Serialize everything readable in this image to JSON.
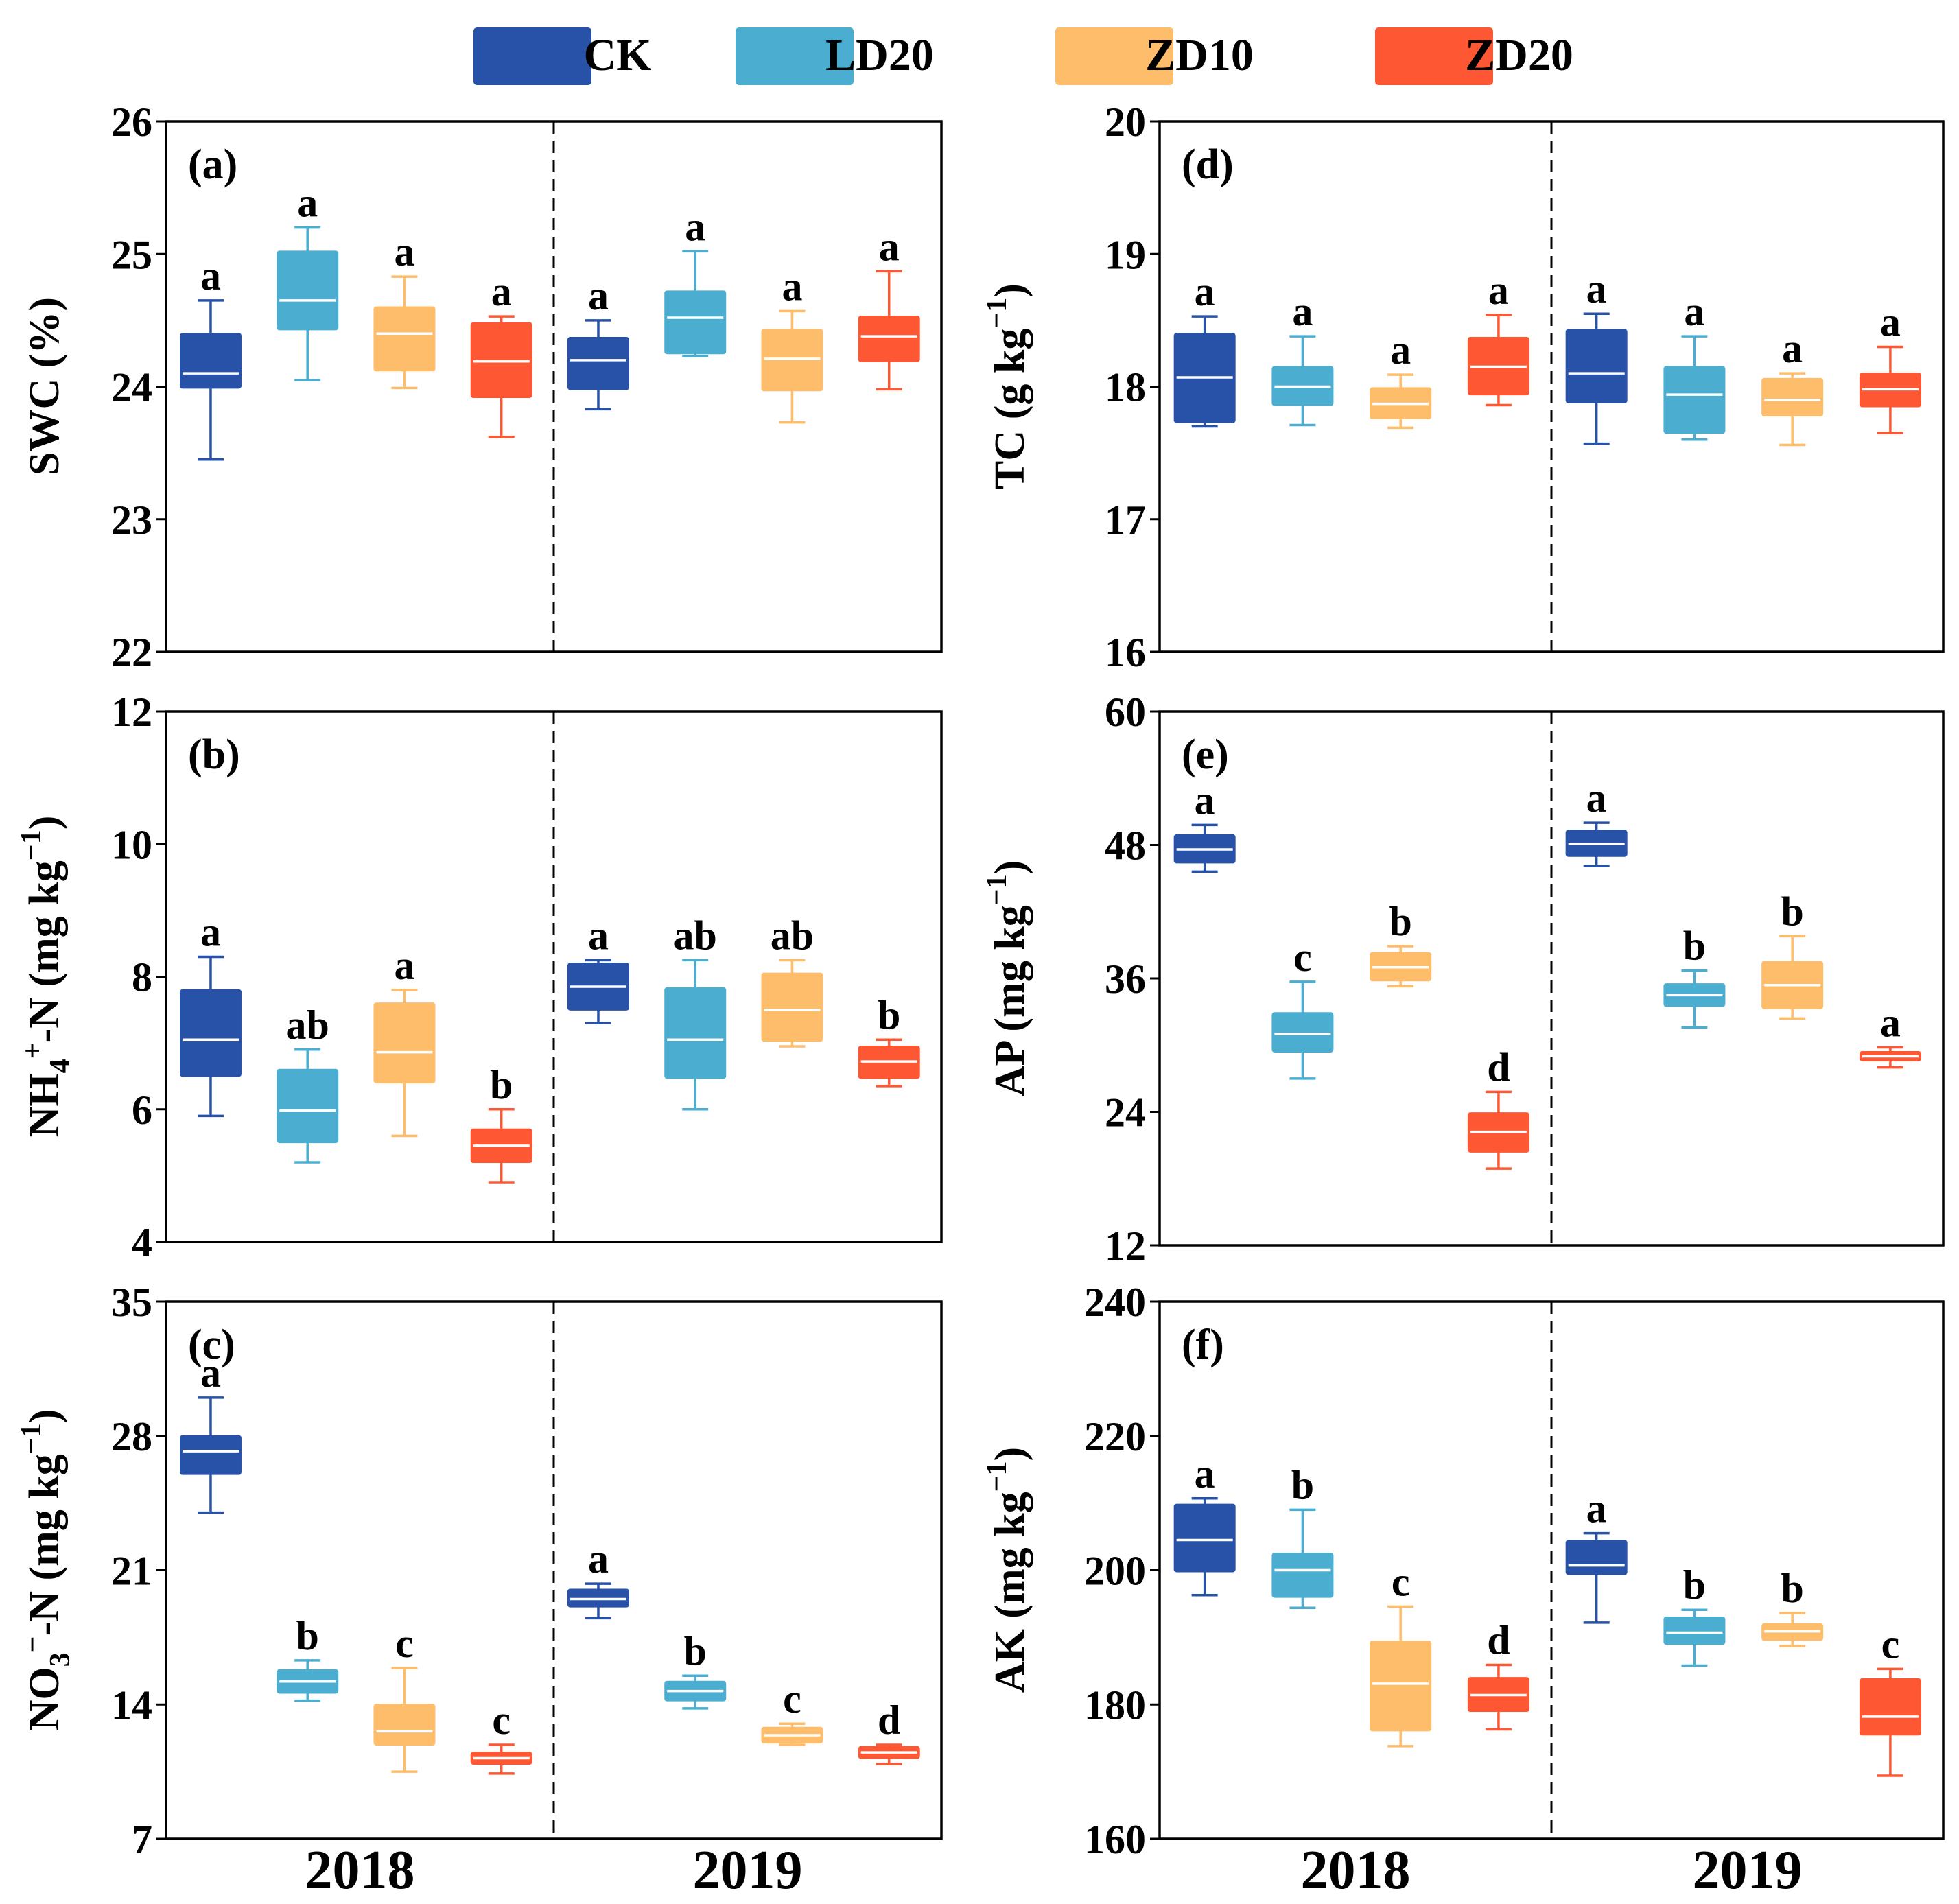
{
  "figure": {
    "groups": [
      "CK",
      "LD20",
      "ZD10",
      "ZD20"
    ],
    "colors": {
      "CK": "#2852A8",
      "LD20": "#4BAED1",
      "ZD10": "#FDBD6B",
      "ZD20": "#FE5733"
    },
    "years": [
      "2018",
      "2019"
    ]
  },
  "chart_data": [
    {
      "type": "box",
      "panel": "(a)",
      "ylabel": "SWC (%)",
      "ylim": [
        22,
        26
      ],
      "yticks": [
        "22",
        "23",
        "24",
        "25",
        "26"
      ],
      "categories": [
        "2018",
        "2019"
      ],
      "series": [
        {
          "name": "CK",
          "boxes": [
            {
              "year": "2018",
              "min": 23.45,
              "q1": 23.99,
              "median": 24.1,
              "q3": 24.4,
              "max": 24.65,
              "letter": "a"
            },
            {
              "year": "2019",
              "min": 23.83,
              "q1": 23.98,
              "median": 24.2,
              "q3": 24.37,
              "max": 24.5,
              "letter": "a"
            }
          ]
        },
        {
          "name": "LD20",
          "boxes": [
            {
              "year": "2018",
              "min": 24.05,
              "q1": 24.43,
              "median": 24.65,
              "q3": 25.02,
              "max": 25.2,
              "letter": "a"
            },
            {
              "year": "2019",
              "min": 24.23,
              "q1": 24.25,
              "median": 24.52,
              "q3": 24.72,
              "max": 25.02,
              "letter": "a"
            }
          ]
        },
        {
          "name": "ZD10",
          "boxes": [
            {
              "year": "2018",
              "min": 23.99,
              "q1": 24.12,
              "median": 24.4,
              "q3": 24.6,
              "max": 24.83,
              "letter": "a"
            },
            {
              "year": "2019",
              "min": 23.73,
              "q1": 23.97,
              "median": 24.21,
              "q3": 24.43,
              "max": 24.57,
              "letter": "a"
            }
          ]
        },
        {
          "name": "ZD20",
          "boxes": [
            {
              "year": "2018",
              "min": 23.62,
              "q1": 23.92,
              "median": 24.19,
              "q3": 24.48,
              "max": 24.53,
              "letter": "a"
            },
            {
              "year": "2019",
              "min": 23.98,
              "q1": 24.19,
              "median": 24.38,
              "q3": 24.53,
              "max": 24.87,
              "letter": "a"
            }
          ]
        }
      ]
    },
    {
      "type": "box",
      "panel": "(b)",
      "ylabel": "NH4+-N (mg kg-1)",
      "ylim": [
        4,
        12
      ],
      "yticks": [
        "4",
        "6",
        "8",
        "10",
        "12"
      ],
      "categories": [
        "2018",
        "2019"
      ],
      "series": [
        {
          "name": "CK",
          "boxes": [
            {
              "year": "2018",
              "min": 5.9,
              "q1": 6.5,
              "median": 7.05,
              "q3": 7.8,
              "max": 8.3,
              "letter": "a"
            },
            {
              "year": "2019",
              "min": 7.3,
              "q1": 7.5,
              "median": 7.85,
              "q3": 8.2,
              "max": 8.25,
              "letter": "a"
            }
          ]
        },
        {
          "name": "LD20",
          "boxes": [
            {
              "year": "2018",
              "min": 5.2,
              "q1": 5.5,
              "median": 5.98,
              "q3": 6.6,
              "max": 6.9,
              "letter": "ab"
            },
            {
              "year": "2019",
              "min": 6.0,
              "q1": 6.47,
              "median": 7.05,
              "q3": 7.83,
              "max": 8.25,
              "letter": "ab"
            }
          ]
        },
        {
          "name": "ZD10",
          "boxes": [
            {
              "year": "2018",
              "min": 5.6,
              "q1": 6.4,
              "median": 6.86,
              "q3": 7.6,
              "max": 7.8,
              "letter": "a"
            },
            {
              "year": "2019",
              "min": 6.95,
              "q1": 7.03,
              "median": 7.5,
              "q3": 8.05,
              "max": 8.25,
              "letter": "ab"
            }
          ]
        },
        {
          "name": "ZD20",
          "boxes": [
            {
              "year": "2018",
              "min": 4.9,
              "q1": 5.2,
              "median": 5.45,
              "q3": 5.7,
              "max": 6.0,
              "letter": "b"
            },
            {
              "year": "2019",
              "min": 6.35,
              "q1": 6.47,
              "median": 6.72,
              "q3": 6.95,
              "max": 7.05,
              "letter": "b"
            }
          ]
        }
      ]
    },
    {
      "type": "box",
      "panel": "(c)",
      "ylabel": "NO3--N (mg kg-1)",
      "ylim": [
        7,
        35
      ],
      "yticks": [
        "7",
        "14",
        "21",
        "28",
        "35"
      ],
      "categories": [
        "2018",
        "2019"
      ],
      "series": [
        {
          "name": "CK",
          "boxes": [
            {
              "year": "2018",
              "min": 24.0,
              "q1": 26.0,
              "median": 27.2,
              "q3": 28.0,
              "max": 30.0,
              "letter": "a"
            },
            {
              "year": "2019",
              "min": 18.5,
              "q1": 19.1,
              "median": 19.5,
              "q3": 20.0,
              "max": 20.3,
              "letter": "a"
            }
          ]
        },
        {
          "name": "LD20",
          "boxes": [
            {
              "year": "2018",
              "min": 14.2,
              "q1": 14.6,
              "median": 15.2,
              "q3": 15.8,
              "max": 16.3,
              "letter": "b"
            },
            {
              "year": "2019",
              "min": 13.8,
              "q1": 14.2,
              "median": 14.7,
              "q3": 15.2,
              "max": 15.5,
              "letter": "b"
            }
          ]
        },
        {
          "name": "ZD10",
          "boxes": [
            {
              "year": "2018",
              "min": 10.5,
              "q1": 11.9,
              "median": 12.6,
              "q3": 14.0,
              "max": 15.9,
              "letter": "c"
            },
            {
              "year": "2019",
              "min": 11.9,
              "q1": 12.0,
              "median": 12.4,
              "q3": 12.8,
              "max": 13.0,
              "letter": "c"
            }
          ]
        },
        {
          "name": "ZD20",
          "boxes": [
            {
              "year": "2018",
              "min": 10.4,
              "q1": 10.9,
              "median": 11.2,
              "q3": 11.5,
              "max": 11.9,
              "letter": "c"
            },
            {
              "year": "2019",
              "min": 10.9,
              "q1": 11.2,
              "median": 11.5,
              "q3": 11.8,
              "max": 11.9,
              "letter": "d"
            }
          ]
        }
      ]
    },
    {
      "type": "box",
      "panel": "(d)",
      "ylabel": "TC (g kg-1)",
      "ylim": [
        16,
        20
      ],
      "yticks": [
        "16",
        "17",
        "18",
        "19",
        "20"
      ],
      "categories": [
        "2018",
        "2019"
      ],
      "series": [
        {
          "name": "CK",
          "boxes": [
            {
              "year": "2018",
              "min": 17.7,
              "q1": 17.73,
              "median": 18.07,
              "q3": 18.4,
              "max": 18.53,
              "letter": "a"
            },
            {
              "year": "2019",
              "min": 17.57,
              "q1": 17.88,
              "median": 18.1,
              "q3": 18.43,
              "max": 18.55,
              "letter": "a"
            }
          ]
        },
        {
          "name": "LD20",
          "boxes": [
            {
              "year": "2018",
              "min": 17.71,
              "q1": 17.86,
              "median": 18.0,
              "q3": 18.15,
              "max": 18.38,
              "letter": "a"
            },
            {
              "year": "2019",
              "min": 17.6,
              "q1": 17.65,
              "median": 17.94,
              "q3": 18.15,
              "max": 18.38,
              "letter": "a"
            }
          ]
        },
        {
          "name": "ZD10",
          "boxes": [
            {
              "year": "2018",
              "min": 17.69,
              "q1": 17.76,
              "median": 17.87,
              "q3": 17.99,
              "max": 18.09,
              "letter": "a"
            },
            {
              "year": "2019",
              "min": 17.56,
              "q1": 17.78,
              "median": 17.9,
              "q3": 18.06,
              "max": 18.1,
              "letter": "a"
            }
          ]
        },
        {
          "name": "ZD20",
          "boxes": [
            {
              "year": "2018",
              "min": 17.86,
              "q1": 17.94,
              "median": 18.15,
              "q3": 18.37,
              "max": 18.54,
              "letter": "a"
            },
            {
              "year": "2019",
              "min": 17.65,
              "q1": 17.85,
              "median": 17.98,
              "q3": 18.1,
              "max": 18.3,
              "letter": "a"
            }
          ]
        }
      ]
    },
    {
      "type": "box",
      "panel": "(e)",
      "ylabel": "AP (mg kg-1)",
      "ylim": [
        12,
        60
      ],
      "yticks": [
        "12",
        "24",
        "36",
        "48",
        "60"
      ],
      "categories": [
        "2018",
        "2019"
      ],
      "series": [
        {
          "name": "CK",
          "boxes": [
            {
              "year": "2018",
              "min": 45.6,
              "q1": 46.4,
              "median": 47.6,
              "q3": 48.9,
              "max": 49.8,
              "letter": "a"
            },
            {
              "year": "2019",
              "min": 46.1,
              "q1": 47.0,
              "median": 48.1,
              "q3": 49.3,
              "max": 50.0,
              "letter": "a"
            }
          ]
        },
        {
          "name": "LD20",
          "boxes": [
            {
              "year": "2018",
              "min": 27.0,
              "q1": 29.4,
              "median": 31.0,
              "q3": 32.9,
              "max": 35.7,
              "letter": "c"
            },
            {
              "year": "2019",
              "min": 31.6,
              "q1": 33.5,
              "median": 34.5,
              "q3": 35.5,
              "max": 36.7,
              "letter": "b"
            }
          ]
        },
        {
          "name": "ZD10",
          "boxes": [
            {
              "year": "2018",
              "min": 35.3,
              "q1": 35.8,
              "median": 37.0,
              "q3": 38.3,
              "max": 38.9,
              "letter": "b"
            },
            {
              "year": "2019",
              "min": 32.4,
              "q1": 33.3,
              "median": 35.4,
              "q3": 37.5,
              "max": 39.8,
              "letter": "b"
            }
          ]
        },
        {
          "name": "ZD20",
          "boxes": [
            {
              "year": "2018",
              "min": 18.9,
              "q1": 20.4,
              "median": 22.2,
              "q3": 23.9,
              "max": 25.8,
              "letter": "d"
            },
            {
              "year": "2019",
              "min": 28.0,
              "q1": 28.6,
              "median": 29.0,
              "q3": 29.4,
              "max": 29.8,
              "letter": "a"
            }
          ]
        }
      ]
    },
    {
      "type": "box",
      "panel": "(f)",
      "ylabel": "AK (mg kg-1)",
      "ylim": [
        160,
        240
      ],
      "yticks": [
        "160",
        "180",
        "200",
        "220",
        "240"
      ],
      "categories": [
        "2018",
        "2019"
      ],
      "series": [
        {
          "name": "CK",
          "boxes": [
            {
              "year": "2018",
              "min": 196.3,
              "q1": 199.8,
              "median": 204.5,
              "q3": 209.8,
              "max": 210.7,
              "letter": "a"
            },
            {
              "year": "2019",
              "min": 192.2,
              "q1": 199.4,
              "median": 200.7,
              "q3": 204.4,
              "max": 205.5,
              "letter": "a"
            }
          ]
        },
        {
          "name": "LD20",
          "boxes": [
            {
              "year": "2018",
              "min": 194.4,
              "q1": 196.0,
              "median": 200.0,
              "q3": 202.5,
              "max": 209.0,
              "letter": "b"
            },
            {
              "year": "2019",
              "min": 185.8,
              "q1": 189.0,
              "median": 190.7,
              "q3": 193.0,
              "max": 194.1,
              "letter": "b"
            }
          ]
        },
        {
          "name": "ZD10",
          "boxes": [
            {
              "year": "2018",
              "min": 173.8,
              "q1": 176.1,
              "median": 183.1,
              "q3": 189.4,
              "max": 194.6,
              "letter": "c"
            },
            {
              "year": "2019",
              "min": 188.7,
              "q1": 189.6,
              "median": 190.9,
              "q3": 192.0,
              "max": 193.6,
              "letter": "b"
            }
          ]
        },
        {
          "name": "ZD20",
          "boxes": [
            {
              "year": "2018",
              "min": 176.3,
              "q1": 179.0,
              "median": 181.4,
              "q3": 184.0,
              "max": 185.9,
              "letter": "d"
            },
            {
              "year": "2019",
              "min": 169.4,
              "q1": 175.5,
              "median": 178.2,
              "q3": 183.8,
              "max": 185.3,
              "letter": "c"
            }
          ]
        }
      ]
    }
  ]
}
